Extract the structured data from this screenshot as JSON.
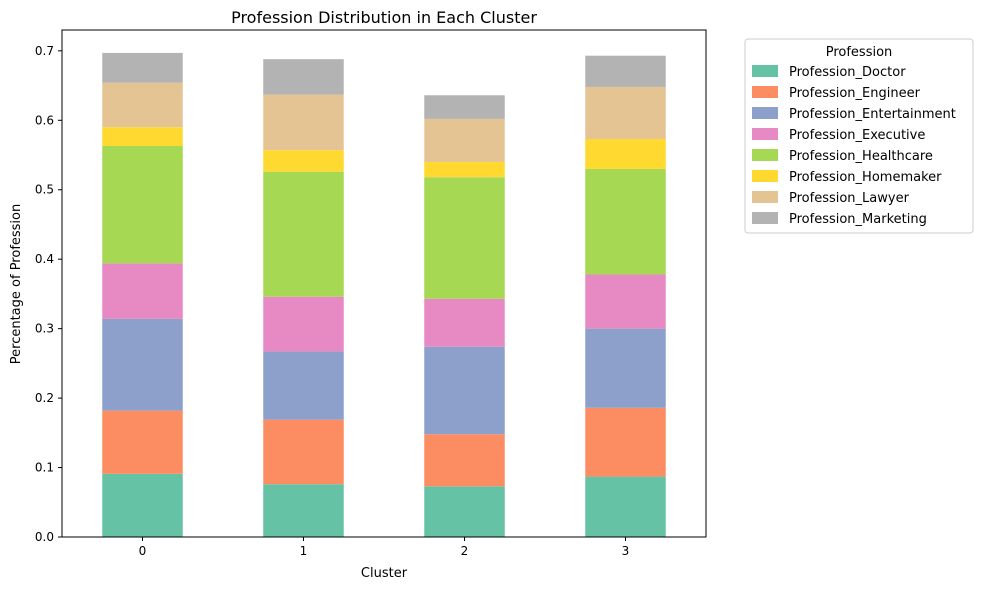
{
  "chart_data": {
    "type": "bar",
    "stacked": true,
    "title": "Profession Distribution in Each Cluster",
    "xlabel": "Cluster",
    "ylabel": "Percentage of Profession",
    "categories": [
      "0",
      "1",
      "2",
      "3"
    ],
    "ylim": [
      0,
      0.73
    ],
    "yticks": [
      "0.0",
      "0.1",
      "0.2",
      "0.3",
      "0.4",
      "0.5",
      "0.6",
      "0.7"
    ],
    "grid": false,
    "legend_title": "Profession",
    "legend_position": "outside-top-right",
    "series": [
      {
        "name": "Profession_Doctor",
        "color": "#66c2a5",
        "values": [
          0.091,
          0.076,
          0.073,
          0.087
        ]
      },
      {
        "name": "Profession_Engineer",
        "color": "#fc8d62",
        "values": [
          0.091,
          0.093,
          0.075,
          0.099
        ]
      },
      {
        "name": "Profession_Entertainment",
        "color": "#8da0cb",
        "values": [
          0.132,
          0.098,
          0.126,
          0.114
        ]
      },
      {
        "name": "Profession_Executive",
        "color": "#e78ac3",
        "values": [
          0.08,
          0.079,
          0.069,
          0.078
        ]
      },
      {
        "name": "Profession_Healthcare",
        "color": "#a6d854",
        "values": [
          0.169,
          0.18,
          0.175,
          0.152
        ]
      },
      {
        "name": "Profession_Homemaker",
        "color": "#ffd92f",
        "values": [
          0.027,
          0.031,
          0.022,
          0.043
        ]
      },
      {
        "name": "Profession_Lawyer",
        "color": "#e5c494",
        "values": [
          0.064,
          0.08,
          0.062,
          0.075
        ]
      },
      {
        "name": "Profession_Marketing",
        "color": "#b3b3b3",
        "values": [
          0.043,
          0.051,
          0.034,
          0.045
        ]
      }
    ]
  }
}
